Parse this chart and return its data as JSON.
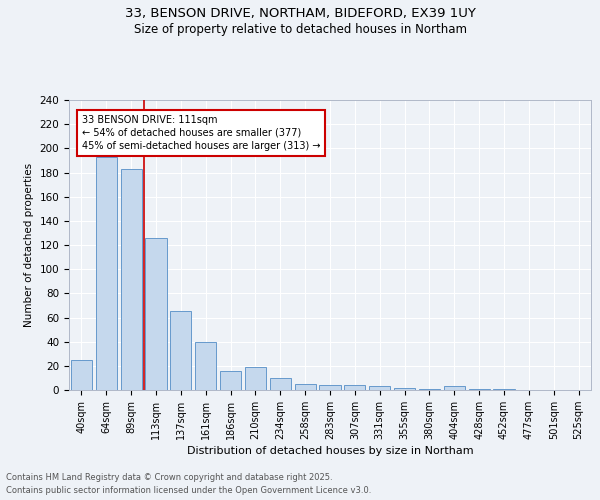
{
  "title1": "33, BENSON DRIVE, NORTHAM, BIDEFORD, EX39 1UY",
  "title2": "Size of property relative to detached houses in Northam",
  "xlabel": "Distribution of detached houses by size in Northam",
  "ylabel": "Number of detached properties",
  "categories": [
    "40sqm",
    "64sqm",
    "89sqm",
    "113sqm",
    "137sqm",
    "161sqm",
    "186sqm",
    "210sqm",
    "234sqm",
    "258sqm",
    "283sqm",
    "307sqm",
    "331sqm",
    "355sqm",
    "380sqm",
    "404sqm",
    "428sqm",
    "452sqm",
    "477sqm",
    "501sqm",
    "525sqm"
  ],
  "values": [
    25,
    193,
    183,
    126,
    65,
    40,
    16,
    19,
    10,
    5,
    4,
    4,
    3,
    2,
    1,
    3,
    1,
    1,
    0,
    0,
    0
  ],
  "bar_color": "#c5d8ed",
  "bar_edge_color": "#6699cc",
  "vline_color": "#cc0000",
  "vline_pos": 2.5,
  "annotation_text_line1": "33 BENSON DRIVE: 111sqm",
  "annotation_text_line2": "← 54% of detached houses are smaller (377)",
  "annotation_text_line3": "45% of semi-detached houses are larger (313) →",
  "ylim": [
    0,
    240
  ],
  "yticks": [
    0,
    20,
    40,
    60,
    80,
    100,
    120,
    140,
    160,
    180,
    200,
    220,
    240
  ],
  "footer_line1": "Contains HM Land Registry data © Crown copyright and database right 2025.",
  "footer_line2": "Contains public sector information licensed under the Open Government Licence v3.0.",
  "bg_color": "#eef2f7",
  "plot_bg_color": "#eef2f7",
  "grid_color": "#ffffff",
  "title1_fontsize": 9.5,
  "title2_fontsize": 8.5
}
